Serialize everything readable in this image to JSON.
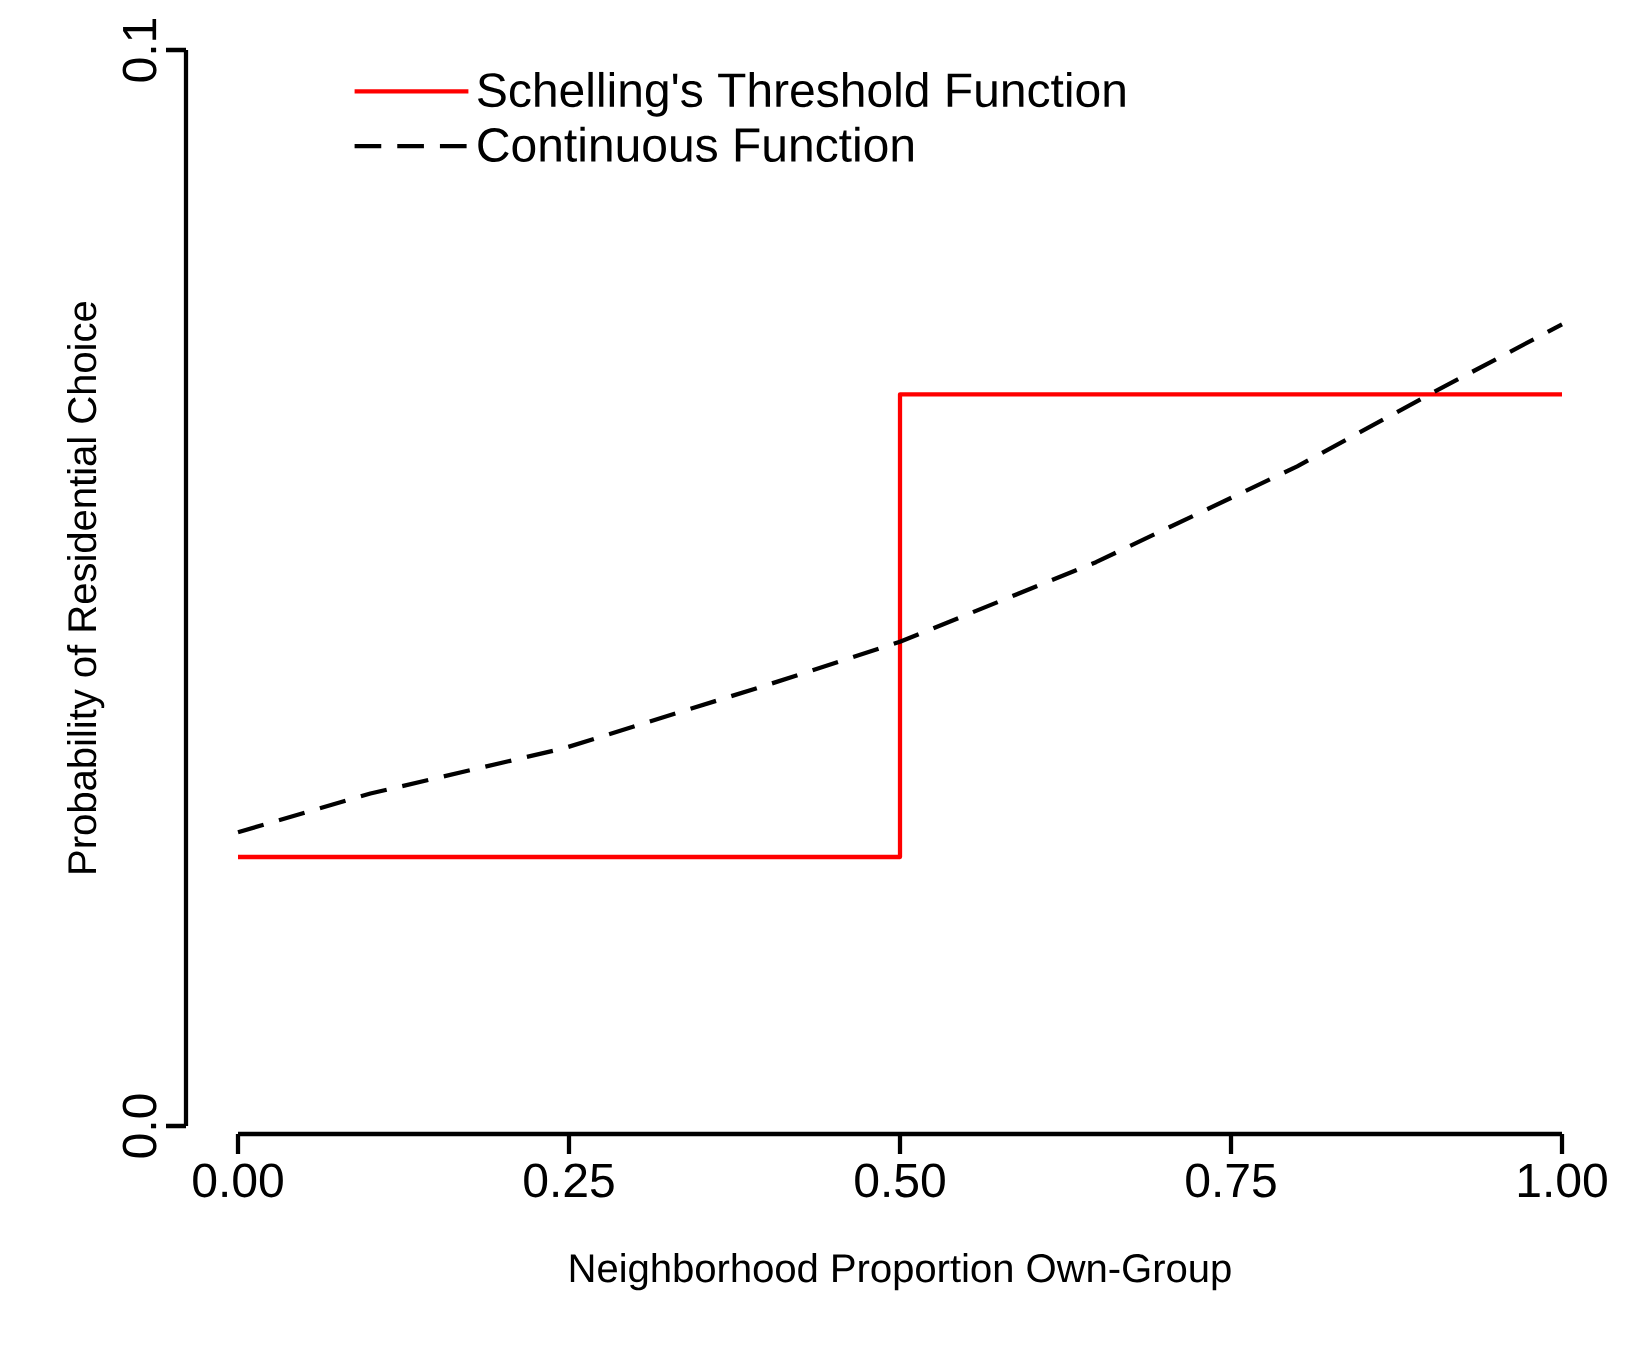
{
  "chart_data": {
    "type": "line",
    "xlabel": "Neighborhood Proportion Own-Group",
    "ylabel": "Probability of Residential Choice",
    "xlim": [
      0,
      1
    ],
    "ylim": [
      0,
      0.1
    ],
    "xticks": [
      {
        "value": 0,
        "label": "0.00"
      },
      {
        "value": 0.25,
        "label": "0.25"
      },
      {
        "value": 0.5,
        "label": "0.50"
      },
      {
        "value": 0.75,
        "label": "0.75"
      },
      {
        "value": 1,
        "label": "1.00"
      }
    ],
    "yticks": [
      {
        "value": 0,
        "label": "0.0"
      },
      {
        "value": 0.1,
        "label": "0.1"
      }
    ],
    "legend": "top",
    "grid": false,
    "marker": "none",
    "series": [
      {
        "name": "Schelling's Threshold Function",
        "type": "step",
        "color": "#ff0000",
        "line_style": "solid",
        "x": [
          0,
          0.5,
          1
        ],
        "values": [
          0.025,
          0.068,
          0.068
        ]
      },
      {
        "name": "Continuous Function",
        "color": "#000000",
        "line_style": "dashed",
        "x": [
          0,
          0.1,
          0.246,
          0.4,
          0.5,
          0.648,
          0.8,
          0.9,
          1
        ],
        "values": [
          0.0273,
          0.0309,
          0.0351,
          0.041,
          0.045,
          0.0524,
          0.0613,
          0.068,
          0.0745
        ]
      }
    ]
  }
}
